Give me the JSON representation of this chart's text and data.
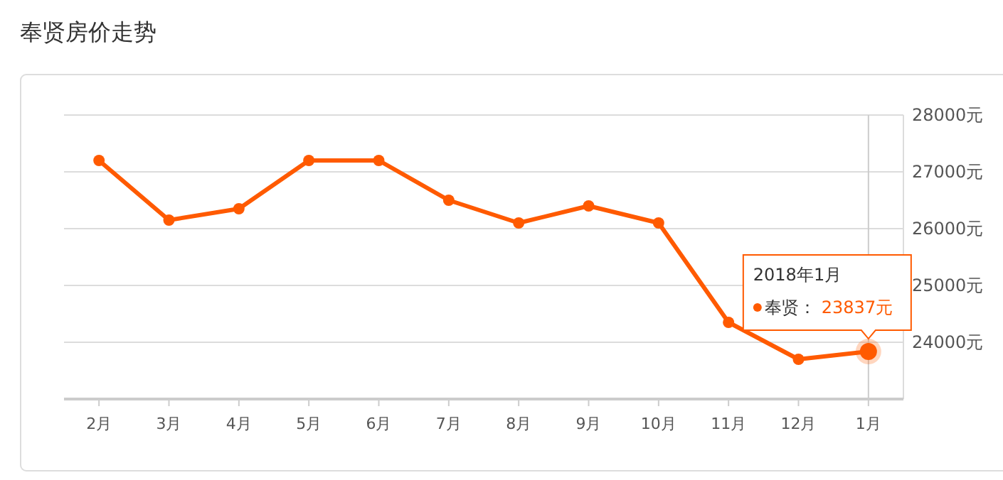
{
  "chart_data": {
    "type": "line",
    "title": "奉贤房价走势",
    "categories": [
      "2月",
      "3月",
      "4月",
      "5月",
      "6月",
      "7月",
      "8月",
      "9月",
      "10月",
      "11月",
      "12月",
      "1月"
    ],
    "series": [
      {
        "name": "奉贤：",
        "color": "#ff5a00",
        "values": [
          27200,
          26150,
          26350,
          27200,
          27200,
          26500,
          26100,
          26400,
          26100,
          24350,
          23700,
          23837
        ],
        "value_labels": [
          null,
          null,
          null,
          null,
          null,
          null,
          null,
          null,
          null,
          null,
          null,
          "23837元"
        ]
      }
    ],
    "ylim": [
      23000,
      28000
    ],
    "yticks": [
      {
        "value": 23000,
        "label": null
      },
      {
        "value": 24000,
        "label": "24000元"
      },
      {
        "value": 25000,
        "label": "25000元"
      },
      {
        "value": 26000,
        "label": "26000元"
      },
      {
        "value": 27000,
        "label": "27000元"
      },
      {
        "value": 28000,
        "label": "28000元"
      }
    ],
    "ref_lines": [
      {
        "axis": "x",
        "value": "1月",
        "color": "#cccccc"
      }
    ],
    "annotations": [
      "2018年1月"
    ],
    "grid": "y",
    "marker": "circle",
    "line_style": "solid"
  }
}
